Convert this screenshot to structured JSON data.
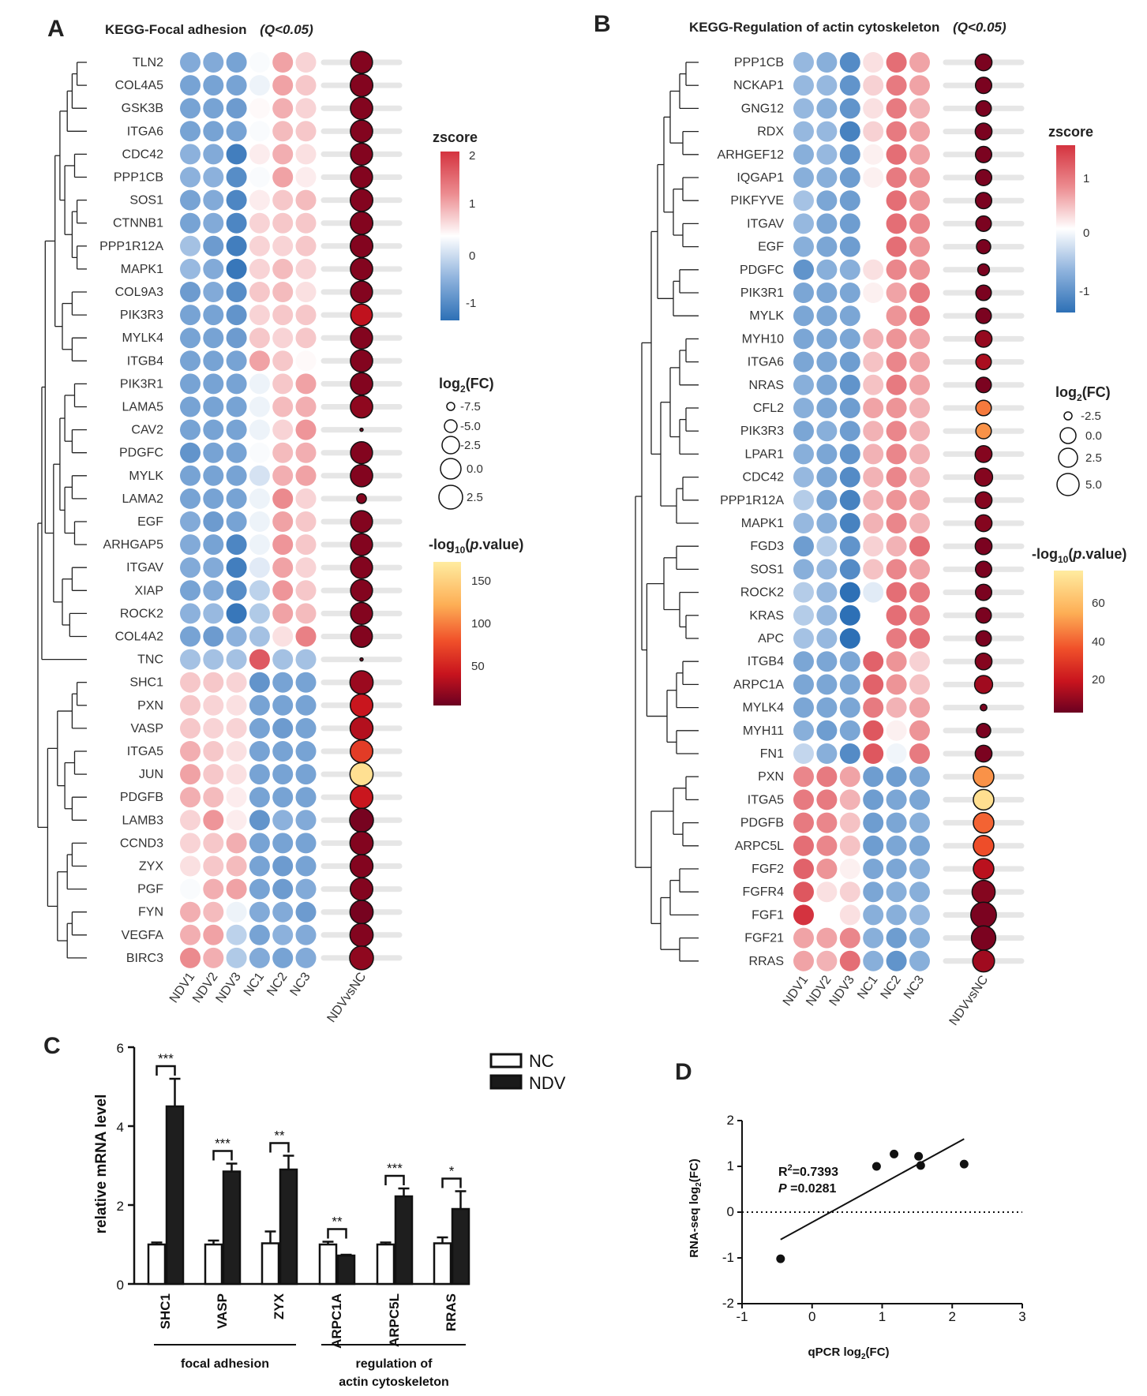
{
  "panelA": {
    "label": "A",
    "title": "KEGG-Focal adhesion",
    "qlabel": "(Q<0.05)",
    "columns": [
      "NDV1",
      "NDV2",
      "NDV3",
      "NC1",
      "NC2",
      "NC3"
    ],
    "comp_label": "NDVvsNC",
    "genes": [
      "TLN2",
      "COL4A5",
      "GSK3B",
      "ITGA6",
      "CDC42",
      "PPP1CB",
      "SOS1",
      "CTNNB1",
      "PPP1R12A",
      "MAPK1",
      "COL9A3",
      "PIK3R3",
      "MYLK4",
      "ITGB4",
      "PIK3R1",
      "LAMA5",
      "CAV2",
      "PDGFC",
      "MYLK",
      "LAMA2",
      "EGF",
      "ARHGAP5",
      "ITGAV",
      "XIAP",
      "ROCK2",
      "COL4A2",
      "TNC",
      "SHC1",
      "PXN",
      "VASP",
      "ITGA5",
      "JUN",
      "PDGFB",
      "LAMB3",
      "CCND3",
      "ZYX",
      "PGF",
      "FYN",
      "VEGFA",
      "BIRC3"
    ],
    "zscore": [
      [
        -0.9,
        -0.9,
        -1.0,
        0.1,
        0.9,
        0.5
      ],
      [
        -1.0,
        -1.0,
        -1.0,
        0.0,
        0.9,
        0.6
      ],
      [
        -1.0,
        -1.0,
        -1.1,
        0.2,
        0.8,
        0.5
      ],
      [
        -1.0,
        -1.0,
        -1.0,
        0.1,
        0.7,
        0.6
      ],
      [
        -0.8,
        -0.9,
        -1.5,
        0.3,
        0.8,
        0.4
      ],
      [
        -0.8,
        -0.8,
        -1.3,
        0.1,
        0.9,
        0.3
      ],
      [
        -1.0,
        -0.9,
        -1.4,
        0.3,
        0.6,
        0.7
      ],
      [
        -1.0,
        -0.9,
        -1.4,
        0.5,
        0.6,
        0.6
      ],
      [
        -0.6,
        -1.1,
        -1.5,
        0.5,
        0.5,
        0.6
      ],
      [
        -0.7,
        -0.9,
        -1.6,
        0.5,
        0.7,
        0.5
      ],
      [
        -1.1,
        -0.9,
        -1.3,
        0.6,
        0.7,
        0.4
      ],
      [
        -1.0,
        -1.0,
        -1.2,
        0.5,
        0.6,
        0.6
      ],
      [
        -1.0,
        -1.0,
        -1.1,
        0.6,
        0.5,
        0.6
      ],
      [
        -1.0,
        -1.0,
        -1.0,
        0.9,
        0.6,
        0.2
      ],
      [
        -1.0,
        -1.0,
        -1.0,
        0.0,
        0.6,
        0.9
      ],
      [
        -1.0,
        -1.0,
        -1.0,
        0.0,
        0.7,
        0.8
      ],
      [
        -1.0,
        -1.0,
        -1.0,
        0.0,
        0.5,
        1.0
      ],
      [
        -1.2,
        -1.0,
        -1.0,
        0.1,
        0.7,
        0.8
      ],
      [
        -1.0,
        -1.0,
        -1.0,
        -0.2,
        0.8,
        0.9
      ],
      [
        -1.0,
        -1.0,
        -1.0,
        0.0,
        1.1,
        0.5
      ],
      [
        -0.9,
        -1.1,
        -1.0,
        0.0,
        0.9,
        0.6
      ],
      [
        -0.9,
        -1.0,
        -1.4,
        0.0,
        1.0,
        0.6
      ],
      [
        -0.9,
        -0.9,
        -1.5,
        -0.1,
        0.9,
        0.5
      ],
      [
        -1.0,
        -0.9,
        -1.3,
        -0.4,
        1.0,
        0.6
      ],
      [
        -0.8,
        -0.7,
        -1.6,
        -0.5,
        0.9,
        0.7
      ],
      [
        -1.0,
        -1.1,
        -0.8,
        -0.6,
        0.4,
        1.2
      ],
      [
        -0.6,
        -0.6,
        -0.6,
        1.6,
        -0.6,
        -0.6
      ],
      [
        0.6,
        0.6,
        0.5,
        -1.2,
        -1.0,
        -1.0
      ],
      [
        0.6,
        0.5,
        0.4,
        -1.0,
        -1.0,
        -1.0
      ],
      [
        0.6,
        0.5,
        0.5,
        -1.0,
        -1.1,
        -1.0
      ],
      [
        0.8,
        0.6,
        0.4,
        -1.0,
        -1.0,
        -1.0
      ],
      [
        0.9,
        0.6,
        0.4,
        -1.0,
        -1.0,
        -1.0
      ],
      [
        0.8,
        0.7,
        0.3,
        -1.0,
        -1.0,
        -1.0
      ],
      [
        0.5,
        1.0,
        0.3,
        -1.2,
        -0.8,
        -0.9
      ],
      [
        0.5,
        0.6,
        0.8,
        -1.0,
        -1.0,
        -1.0
      ],
      [
        0.4,
        0.6,
        0.7,
        -1.0,
        -1.1,
        -1.0
      ],
      [
        0.1,
        0.8,
        0.9,
        -1.0,
        -1.1,
        -0.9
      ],
      [
        0.8,
        0.7,
        0.0,
        -0.9,
        -0.9,
        -1.1
      ],
      [
        0.8,
        0.9,
        -0.4,
        -1.0,
        -0.8,
        -0.9
      ],
      [
        1.1,
        0.8,
        -0.5,
        -0.9,
        -1.0,
        -0.9
      ]
    ],
    "log2fc": [
      0.6,
      0.8,
      0.7,
      0.7,
      0.6,
      0.6,
      0.8,
      0.8,
      0.8,
      0.7,
      0.6,
      0.5,
      0.6,
      0.7,
      0.7,
      0.7,
      -6.0,
      0.6,
      0.7,
      -3.5,
      0.6,
      0.6,
      0.6,
      0.6,
      0.6,
      0.5,
      -7.5,
      1.0,
      0.8,
      0.9,
      0.8,
      1.0,
      0.8,
      1.2,
      1.0,
      0.9,
      0.8,
      1.0,
      1.0,
      1.2
    ],
    "neglog10p": [
      10,
      10,
      10,
      10,
      10,
      10,
      10,
      10,
      10,
      10,
      10,
      35,
      10,
      10,
      10,
      15,
      10,
      10,
      10,
      10,
      10,
      10,
      10,
      10,
      10,
      10,
      10,
      20,
      40,
      30,
      65,
      165,
      40,
      5,
      10,
      10,
      10,
      5,
      10,
      15
    ],
    "legend": {
      "zscore_title": "zscore",
      "zscore_ticks": [
        "2",
        "1",
        "0",
        "-1"
      ],
      "fc_title_pre": "log",
      "fc_title_sub": "2",
      "fc_title_post": "(FC)",
      "fc_labels": [
        "-7.5",
        "-5.0",
        "-2.5",
        "0.0",
        "2.5"
      ],
      "p_title_pre": "-log",
      "p_title_sub": "10",
      "p_title_mid": "(",
      "p_title_italic": "p",
      "p_title_post": ".value)",
      "p_ticks": [
        "150",
        "100",
        "50"
      ]
    }
  },
  "panelB": {
    "label": "B",
    "title": "KEGG-Regulation of actin cytoskeleton",
    "qlabel": "(Q<0.05)",
    "columns": [
      "NDV1",
      "NDV2",
      "NDV3",
      "NC1",
      "NC2",
      "NC3"
    ],
    "comp_label": "NDVvsNC",
    "genes": [
      "PPP1CB",
      "NCKAP1",
      "GNG12",
      "RDX",
      "ARHGEF12",
      "IQGAP1",
      "PIKFYVE",
      "ITGAV",
      "EGF",
      "PDGFC",
      "PIK3R1",
      "MYLK",
      "MYH10",
      "ITGA6",
      "NRAS",
      "CFL2",
      "PIK3R3",
      "LPAR1",
      "CDC42",
      "PPP1R12A",
      "MAPK1",
      "FGD3",
      "SOS1",
      "ROCK2",
      "KRAS",
      "APC",
      "ITGB4",
      "ARPC1A",
      "MYLK4",
      "MYH11",
      "FN1",
      "PXN",
      "ITGA5",
      "PDGFB",
      "ARPC5L",
      "FGF2",
      "FGFR4",
      "FGF1",
      "FGF21",
      "RRAS"
    ],
    "zscore": [
      [
        -0.7,
        -0.8,
        -1.2,
        0.2,
        1.0,
        0.6
      ],
      [
        -0.7,
        -0.7,
        -1.1,
        0.3,
        0.9,
        0.6
      ],
      [
        -0.7,
        -0.8,
        -1.1,
        0.2,
        0.9,
        0.5
      ],
      [
        -0.7,
        -0.7,
        -1.3,
        0.3,
        0.9,
        0.6
      ],
      [
        -0.8,
        -0.7,
        -1.1,
        0.1,
        1.0,
        0.6
      ],
      [
        -0.8,
        -0.8,
        -1.0,
        0.1,
        0.9,
        0.7
      ],
      [
        -0.6,
        -0.9,
        -1.0,
        0.0,
        1.0,
        0.7
      ],
      [
        -0.7,
        -0.9,
        -1.0,
        0.0,
        1.0,
        0.8
      ],
      [
        -0.8,
        -0.9,
        -1.0,
        0.0,
        1.0,
        0.7
      ],
      [
        -1.1,
        -0.8,
        -0.8,
        0.2,
        0.8,
        0.7
      ],
      [
        -0.9,
        -0.9,
        -0.9,
        0.1,
        0.6,
        0.9
      ],
      [
        -0.9,
        -0.9,
        -0.9,
        0.0,
        0.7,
        0.9
      ],
      [
        -0.9,
        -0.9,
        -0.9,
        0.5,
        0.7,
        0.6
      ],
      [
        -0.9,
        -0.9,
        -1.0,
        0.4,
        0.8,
        0.6
      ],
      [
        -0.8,
        -0.9,
        -1.1,
        0.4,
        0.9,
        0.6
      ],
      [
        -0.8,
        -0.9,
        -1.0,
        0.6,
        0.7,
        0.5
      ],
      [
        -0.9,
        -0.8,
        -1.0,
        0.5,
        0.8,
        0.5
      ],
      [
        -0.8,
        -0.9,
        -1.1,
        0.5,
        0.8,
        0.5
      ],
      [
        -0.7,
        -0.9,
        -1.2,
        0.5,
        0.8,
        0.5
      ],
      [
        -0.5,
        -0.9,
        -1.3,
        0.5,
        0.7,
        0.6
      ],
      [
        -0.7,
        -0.8,
        -1.3,
        0.5,
        0.8,
        0.5
      ],
      [
        -1.0,
        -0.5,
        -1.1,
        0.3,
        0.5,
        1.0
      ],
      [
        -0.8,
        -0.7,
        -1.2,
        0.4,
        0.8,
        0.6
      ],
      [
        -0.5,
        -0.7,
        -1.5,
        -0.2,
        1.0,
        0.9
      ],
      [
        -0.5,
        -0.7,
        -1.5,
        0.0,
        1.0,
        0.9
      ],
      [
        -0.6,
        -0.7,
        -1.5,
        0.0,
        0.9,
        1.0
      ],
      [
        -0.9,
        -0.9,
        -0.9,
        1.1,
        0.7,
        0.3
      ],
      [
        -0.9,
        -0.9,
        -0.9,
        1.1,
        0.7,
        0.4
      ],
      [
        -0.9,
        -0.9,
        -0.9,
        0.9,
        0.5,
        0.6
      ],
      [
        -0.8,
        -1.0,
        -0.9,
        1.2,
        0.1,
        0.7
      ],
      [
        -0.4,
        -0.8,
        -1.2,
        1.2,
        -0.1,
        0.9
      ],
      [
        0.8,
        0.9,
        0.6,
        -1.0,
        -1.0,
        -0.9
      ],
      [
        0.9,
        0.9,
        0.5,
        -1.0,
        -0.9,
        -0.9
      ],
      [
        0.9,
        0.8,
        0.4,
        -1.0,
        -0.9,
        -0.8
      ],
      [
        1.0,
        0.8,
        0.4,
        -1.0,
        -0.9,
        -0.9
      ],
      [
        1.1,
        0.7,
        0.1,
        -0.9,
        -0.9,
        -0.8
      ],
      [
        1.2,
        0.2,
        0.3,
        -0.9,
        -0.8,
        -0.8
      ],
      [
        1.5,
        0.0,
        0.2,
        -0.8,
        -0.8,
        -0.7
      ],
      [
        0.6,
        0.6,
        0.8,
        -0.8,
        -1.0,
        -0.8
      ],
      [
        0.6,
        0.5,
        1.0,
        -0.8,
        -1.1,
        -0.8
      ]
    ],
    "log2fc": [
      1.0,
      0.8,
      0.5,
      1.0,
      0.8,
      0.8,
      0.8,
      0.5,
      0.0,
      -1.0,
      0.5,
      0.5,
      1.0,
      0.5,
      0.5,
      0.5,
      0.5,
      1.0,
      1.5,
      1.0,
      1.0,
      1.0,
      0.8,
      0.8,
      0.5,
      0.5,
      1.0,
      1.5,
      -3.0,
      0.0,
      1.0,
      2.5,
      2.5,
      2.5,
      2.5,
      2.5,
      3.5,
      4.5,
      4.0,
      3.0
    ],
    "neglog10p": [
      3,
      3,
      3,
      3,
      3,
      3,
      3,
      3,
      3,
      3,
      3,
      3,
      8,
      12,
      3,
      45,
      50,
      5,
      5,
      5,
      5,
      3,
      3,
      3,
      3,
      3,
      5,
      10,
      3,
      3,
      3,
      50,
      75,
      40,
      35,
      15,
      5,
      3,
      3,
      10
    ],
    "legend": {
      "zscore_title": "zscore",
      "zscore_ticks": [
        "1",
        "0",
        "-1"
      ],
      "fc_title_pre": "log",
      "fc_title_sub": "2",
      "fc_title_post": "(FC)",
      "fc_labels": [
        "-2.5",
        "0.0",
        "2.5",
        "5.0"
      ],
      "p_title_pre": "-log",
      "p_title_sub": "10",
      "p_title_mid": "(",
      "p_title_italic": "p",
      "p_title_post": ".value)",
      "p_ticks": [
        "60",
        "40",
        "20"
      ]
    }
  },
  "chart_data": [
    {
      "type": "bar",
      "panel": "C",
      "categories": [
        "SHC1",
        "VASP",
        "ZYX",
        "ARPC1A",
        "ARPC5L",
        "RRAS"
      ],
      "series": [
        {
          "name": "NC",
          "values": [
            1.0,
            1.0,
            1.03,
            1.0,
            1.0,
            1.03
          ],
          "errors": [
            0.05,
            0.1,
            0.3,
            0.07,
            0.05,
            0.15
          ]
        },
        {
          "name": "NDV",
          "values": [
            4.5,
            2.85,
            2.9,
            0.72,
            2.22,
            1.9
          ],
          "errors": [
            0.7,
            0.2,
            0.35,
            0.02,
            0.2,
            0.45
          ]
        }
      ],
      "significance": [
        "***",
        "***",
        "**",
        "**",
        "***",
        "*"
      ],
      "ylabel": "relative mRNA level",
      "ylim": [
        0,
        6
      ],
      "yticks": [
        0,
        2,
        4,
        6
      ],
      "groups": [
        {
          "label": "focal adhesion",
          "categories": [
            "SHC1",
            "VASP",
            "ZYX"
          ]
        },
        {
          "label": "regulation of actin cytoskeleton",
          "label_lines": [
            "regulation of",
            "actin cytoskeleton"
          ],
          "categories": [
            "ARPC1A",
            "ARPC5L",
            "RRAS"
          ]
        }
      ],
      "legend": [
        "NC",
        "NDV"
      ]
    },
    {
      "type": "scatter",
      "panel": "D",
      "x": [
        -0.45,
        0.92,
        1.17,
        1.52,
        1.55,
        2.17
      ],
      "y": [
        -1.02,
        1.0,
        1.27,
        1.22,
        1.02,
        1.05
      ],
      "fit_line": {
        "x": [
          -0.45,
          2.17
        ],
        "y": [
          -0.6,
          1.6
        ]
      },
      "annotation_r2_pre": "R",
      "annotation_r2_sup": "2",
      "annotation_r2_post": "=0.7393",
      "annotation_p_italic": "P",
      "annotation_p_post": " =0.0281",
      "xlabel_pre": "qPCR log",
      "xlabel_sub": "2",
      "xlabel_post": "(FC)",
      "ylabel_pre": "RNA-seq log",
      "ylabel_sub": "2",
      "ylabel_post": "(FC)",
      "xlim": [
        -1,
        3
      ],
      "ylim": [
        -2,
        2
      ],
      "xticks": [
        -1,
        0,
        1,
        2,
        3
      ],
      "yticks": [
        -2,
        -1,
        0,
        1,
        2
      ],
      "reference_line_y": 0
    }
  ],
  "panelC": {
    "label": "C"
  },
  "panelD": {
    "label": "D"
  }
}
